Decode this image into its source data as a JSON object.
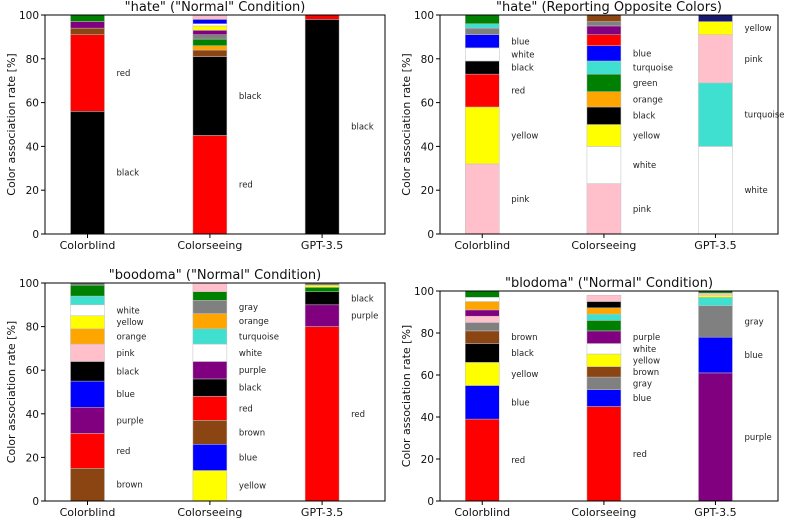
{
  "chart_data": [
    {
      "type": "bar",
      "stacked": true,
      "title": "\"hate\" (\"Normal\" Condition)",
      "ylabel": "Color association rate [%]",
      "ylim": [
        0,
        100
      ],
      "yticks": [
        "0",
        "20",
        "40",
        "60",
        "80",
        "100"
      ],
      "categories": [
        "Colorblind",
        "Colorseeing",
        "GPT-3.5"
      ],
      "stacks": [
        [
          {
            "name": "black",
            "value": 56,
            "color": "#000000",
            "label": "black"
          },
          {
            "name": "red",
            "value": 35,
            "color": "#ff0000",
            "label": "red"
          },
          {
            "name": "brown",
            "value": 3,
            "color": "#8b4513",
            "label": ""
          },
          {
            "name": "purple",
            "value": 3,
            "color": "#800080",
            "label": ""
          },
          {
            "name": "green",
            "value": 3,
            "color": "#008000",
            "label": ""
          }
        ],
        [
          {
            "name": "red",
            "value": 45,
            "color": "#ff0000",
            "label": "red"
          },
          {
            "name": "black",
            "value": 36,
            "color": "#000000",
            "label": "black"
          },
          {
            "name": "brown",
            "value": 3,
            "color": "#8b4513",
            "label": ""
          },
          {
            "name": "orange",
            "value": 2,
            "color": "#ffa500",
            "label": ""
          },
          {
            "name": "green",
            "value": 3,
            "color": "#008000",
            "label": ""
          },
          {
            "name": "gray",
            "value": 2,
            "color": "#808080",
            "label": ""
          },
          {
            "name": "purple",
            "value": 2,
            "color": "#800080",
            "label": ""
          },
          {
            "name": "yellow",
            "value": 2,
            "color": "#ffff00",
            "label": ""
          },
          {
            "name": "white",
            "value": 1,
            "color": "#ffffff",
            "label": ""
          },
          {
            "name": "blue",
            "value": 2,
            "color": "#0000ff",
            "label": ""
          },
          {
            "name": "pink",
            "value": 2,
            "color": "#ffc0cb",
            "label": ""
          }
        ],
        [
          {
            "name": "black",
            "value": 98,
            "color": "#000000",
            "label": "black"
          },
          {
            "name": "red",
            "value": 2,
            "color": "#ff0000",
            "label": ""
          }
        ]
      ]
    },
    {
      "type": "bar",
      "stacked": true,
      "title": "\"hate\" (Reporting Opposite Colors)",
      "ylabel": "Color association rate [%]",
      "ylim": [
        0,
        100
      ],
      "yticks": [
        "0",
        "20",
        "40",
        "60",
        "80",
        "100"
      ],
      "categories": [
        "Colorblind",
        "Colorseeing",
        "GPT-3.5"
      ],
      "stacks": [
        [
          {
            "name": "pink",
            "value": 32,
            "color": "#ffc0cb",
            "label": "pink"
          },
          {
            "name": "yellow",
            "value": 26,
            "color": "#ffff00",
            "label": "yellow"
          },
          {
            "name": "red",
            "value": 15,
            "color": "#ff0000",
            "label": "red"
          },
          {
            "name": "black",
            "value": 6,
            "color": "#000000",
            "label": "black"
          },
          {
            "name": "white",
            "value": 6,
            "color": "#ffffff",
            "label": "white"
          },
          {
            "name": "blue",
            "value": 6,
            "color": "#0000ff",
            "label": "blue"
          },
          {
            "name": "gray",
            "value": 3,
            "color": "#808080",
            "label": ""
          },
          {
            "name": "turquoise",
            "value": 2,
            "color": "#40e0d0",
            "label": ""
          },
          {
            "name": "green",
            "value": 4,
            "color": "#008000",
            "label": ""
          }
        ],
        [
          {
            "name": "pink",
            "value": 23,
            "color": "#ffc0cb",
            "label": "pink"
          },
          {
            "name": "white",
            "value": 17,
            "color": "#ffffff",
            "label": "white"
          },
          {
            "name": "yellow",
            "value": 10,
            "color": "#ffff00",
            "label": "yellow"
          },
          {
            "name": "black",
            "value": 8,
            "color": "#000000",
            "label": "black"
          },
          {
            "name": "orange",
            "value": 7,
            "color": "#ffa500",
            "label": "orange"
          },
          {
            "name": "green",
            "value": 8,
            "color": "#008000",
            "label": "green"
          },
          {
            "name": "turquoise",
            "value": 6,
            "color": "#40e0d0",
            "label": "turquoise"
          },
          {
            "name": "blue",
            "value": 7,
            "color": "#0000ff",
            "label": "blue"
          },
          {
            "name": "red",
            "value": 5,
            "color": "#ff0000",
            "label": ""
          },
          {
            "name": "purple",
            "value": 4,
            "color": "#800080",
            "label": ""
          },
          {
            "name": "gray",
            "value": 2,
            "color": "#808080",
            "label": ""
          },
          {
            "name": "brown",
            "value": 3,
            "color": "#8b4513",
            "label": ""
          }
        ],
        [
          {
            "name": "white",
            "value": 40,
            "color": "#ffffff",
            "label": "white"
          },
          {
            "name": "turquoise",
            "value": 29,
            "color": "#40e0d0",
            "label": "turquoise"
          },
          {
            "name": "pink",
            "value": 22,
            "color": "#ffc0cb",
            "label": "pink"
          },
          {
            "name": "yellow",
            "value": 6,
            "color": "#ffff00",
            "label": "yellow"
          },
          {
            "name": "navy",
            "value": 3,
            "color": "#191970",
            "label": ""
          }
        ]
      ]
    },
    {
      "type": "bar",
      "stacked": true,
      "title": "\"boodoma\" (\"Normal\" Condition)",
      "ylabel": "Color association rate [%]",
      "ylim": [
        0,
        100
      ],
      "yticks": [
        "0",
        "20",
        "40",
        "60",
        "80",
        "100"
      ],
      "categories": [
        "Colorblind",
        "Colorseeing",
        "GPT-3.5"
      ],
      "stacks": [
        [
          {
            "name": "brown",
            "value": 15,
            "color": "#8b4513",
            "label": "brown"
          },
          {
            "name": "red",
            "value": 16,
            "color": "#ff0000",
            "label": "red"
          },
          {
            "name": "purple",
            "value": 12,
            "color": "#800080",
            "label": "purple"
          },
          {
            "name": "blue",
            "value": 12,
            "color": "#0000ff",
            "label": "blue"
          },
          {
            "name": "black",
            "value": 9,
            "color": "#000000",
            "label": "black"
          },
          {
            "name": "pink",
            "value": 8,
            "color": "#ffc0cb",
            "label": "pink"
          },
          {
            "name": "orange",
            "value": 7,
            "color": "#ffa500",
            "label": "orange"
          },
          {
            "name": "yellow",
            "value": 6,
            "color": "#ffff00",
            "label": "yellow"
          },
          {
            "name": "white",
            "value": 5,
            "color": "#ffffff",
            "label": "white"
          },
          {
            "name": "turquoise",
            "value": 4,
            "color": "#40e0d0",
            "label": ""
          },
          {
            "name": "green",
            "value": 5,
            "color": "#008000",
            "label": ""
          },
          {
            "name": "gray",
            "value": 1,
            "color": "#808080",
            "label": ""
          }
        ],
        [
          {
            "name": "yellow",
            "value": 14,
            "color": "#ffff00",
            "label": "yellow"
          },
          {
            "name": "blue",
            "value": 12,
            "color": "#0000ff",
            "label": "blue"
          },
          {
            "name": "brown",
            "value": 11,
            "color": "#8b4513",
            "label": "brown"
          },
          {
            "name": "red",
            "value": 11,
            "color": "#ff0000",
            "label": "red"
          },
          {
            "name": "black",
            "value": 8,
            "color": "#000000",
            "label": "black"
          },
          {
            "name": "purple",
            "value": 8,
            "color": "#800080",
            "label": "purple"
          },
          {
            "name": "white",
            "value": 8,
            "color": "#ffffff",
            "label": "white"
          },
          {
            "name": "turquoise",
            "value": 7,
            "color": "#40e0d0",
            "label": "turquoise"
          },
          {
            "name": "orange",
            "value": 7,
            "color": "#ffa500",
            "label": "orange"
          },
          {
            "name": "gray",
            "value": 6,
            "color": "#808080",
            "label": "gray"
          },
          {
            "name": "green",
            "value": 4,
            "color": "#008000",
            "label": ""
          },
          {
            "name": "pink",
            "value": 4,
            "color": "#ffc0cb",
            "label": ""
          }
        ],
        [
          {
            "name": "red",
            "value": 80,
            "color": "#ff0000",
            "label": "red"
          },
          {
            "name": "purple",
            "value": 10,
            "color": "#800080",
            "label": "purple"
          },
          {
            "name": "black",
            "value": 6,
            "color": "#000000",
            "label": "black"
          },
          {
            "name": "green",
            "value": 2,
            "color": "#008000",
            "label": ""
          },
          {
            "name": "yellow",
            "value": 1,
            "color": "#ffff00",
            "label": ""
          },
          {
            "name": "gray",
            "value": 1,
            "color": "#808080",
            "label": ""
          }
        ]
      ]
    },
    {
      "type": "bar",
      "stacked": true,
      "title": "\"blodoma\" (\"Normal\" Condition)",
      "ylabel": "Color association rate [%]",
      "ylim": [
        0,
        100
      ],
      "yticks": [
        "0",
        "20",
        "40",
        "60",
        "80",
        "100"
      ],
      "categories": [
        "Colorblind",
        "Colorseeing",
        "GPT-3.5"
      ],
      "stacks": [
        [
          {
            "name": "red",
            "value": 39,
            "color": "#ff0000",
            "label": "red"
          },
          {
            "name": "blue",
            "value": 16,
            "color": "#0000ff",
            "label": "blue"
          },
          {
            "name": "yellow",
            "value": 11,
            "color": "#ffff00",
            "label": "yellow"
          },
          {
            "name": "black",
            "value": 9,
            "color": "#000000",
            "label": "black"
          },
          {
            "name": "brown",
            "value": 6,
            "color": "#8b4513",
            "label": "brown"
          },
          {
            "name": "gray",
            "value": 4,
            "color": "#808080",
            "label": ""
          },
          {
            "name": "pink",
            "value": 3,
            "color": "#ffc0cb",
            "label": ""
          },
          {
            "name": "purple",
            "value": 3,
            "color": "#800080",
            "label": ""
          },
          {
            "name": "orange",
            "value": 4,
            "color": "#ffa500",
            "label": ""
          },
          {
            "name": "white",
            "value": 2,
            "color": "#ffffff",
            "label": ""
          },
          {
            "name": "green",
            "value": 3,
            "color": "#008000",
            "label": ""
          }
        ],
        [
          {
            "name": "red",
            "value": 45,
            "color": "#ff0000",
            "label": "red"
          },
          {
            "name": "blue",
            "value": 8,
            "color": "#0000ff",
            "label": "blue"
          },
          {
            "name": "gray",
            "value": 6,
            "color": "#808080",
            "label": "gray"
          },
          {
            "name": "brown",
            "value": 5,
            "color": "#8b4513",
            "label": "brown"
          },
          {
            "name": "yellow",
            "value": 6,
            "color": "#ffff00",
            "label": "yellow"
          },
          {
            "name": "white",
            "value": 5,
            "color": "#ffffff",
            "label": "white"
          },
          {
            "name": "purple",
            "value": 6,
            "color": "#800080",
            "label": "purple"
          },
          {
            "name": "green",
            "value": 5,
            "color": "#008000",
            "label": ""
          },
          {
            "name": "turquoise",
            "value": 3,
            "color": "#40e0d0",
            "label": ""
          },
          {
            "name": "orange",
            "value": 3,
            "color": "#ffa500",
            "label": ""
          },
          {
            "name": "black",
            "value": 3,
            "color": "#000000",
            "label": ""
          },
          {
            "name": "pink",
            "value": 3,
            "color": "#ffc0cb",
            "label": ""
          }
        ],
        [
          {
            "name": "purple",
            "value": 61,
            "color": "#800080",
            "label": "purple"
          },
          {
            "name": "blue",
            "value": 17,
            "color": "#0000ff",
            "label": "blue"
          },
          {
            "name": "gray",
            "value": 15,
            "color": "#808080",
            "label": "gray"
          },
          {
            "name": "turquoise",
            "value": 4,
            "color": "#40e0d0",
            "label": ""
          },
          {
            "name": "yellow",
            "value": 1,
            "color": "#ffff00",
            "label": ""
          },
          {
            "name": "pink",
            "value": 1,
            "color": "#ffc0cb",
            "label": ""
          },
          {
            "name": "green",
            "value": 1,
            "color": "#008000",
            "label": ""
          }
        ]
      ]
    }
  ]
}
